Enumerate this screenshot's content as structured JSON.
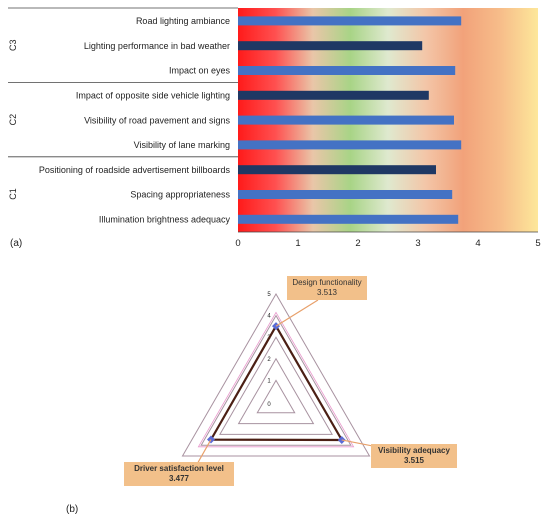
{
  "panel_a_label": "(a)",
  "panel_b_label": "(b)",
  "chart_data": [
    {
      "type": "bar",
      "orientation": "horizontal",
      "xlim": [
        0,
        5
      ],
      "x_ticks": [
        "0",
        "1",
        "2",
        "3",
        "4",
        "5"
      ],
      "groups": [
        {
          "name": "C3",
          "categories": [
            "Road lighting ambiance",
            "Lighting performance in bad weather",
            "Impact on eyes"
          ]
        },
        {
          "name": "C2",
          "categories": [
            "Impact of opposite side vehicle lighting",
            "Visibility of road pavement and signs",
            "Visibility of lane marking"
          ]
        },
        {
          "name": "C1",
          "categories": [
            "Positioning of roadside advertisement billboards",
            "Spacing appropriateness",
            "Illumination brightness adequacy"
          ]
        }
      ],
      "bars": [
        {
          "label": "Road lighting ambiance",
          "value": 3.72,
          "color": "#4472c4"
        },
        {
          "label": "Lighting performance in bad weather",
          "value": 3.07,
          "color": "#1f3864"
        },
        {
          "label": "Impact on eyes",
          "value": 3.62,
          "color": "#4472c4"
        },
        {
          "label": "Impact of opposite side vehicle lighting ",
          "value": 3.18,
          "color": "#1f3864"
        },
        {
          "label": "Visibility of road pavement and signs",
          "value": 3.6,
          "color": "#4472c4"
        },
        {
          "label": "Visibility of lane marking",
          "value": 3.72,
          "color": "#4472c4"
        },
        {
          "label": "Positioning of roadside advertisement billboards",
          "value": 3.3,
          "color": "#1f3864"
        },
        {
          "label": "Spacing appropriateness",
          "value": 3.57,
          "color": "#4472c4"
        },
        {
          "label": "Illumination brightness adequacy",
          "value": 3.67,
          "color": "#4472c4"
        }
      ],
      "background_gradient": [
        "#ff1a1a",
        "#ff5050",
        "#e9c6a8",
        "#a8d486",
        "#dfe9cf",
        "#f3c6a8",
        "#f2a27a",
        "#f7bd8a",
        "#fde79a"
      ]
    },
    {
      "type": "radar",
      "r_ticks": [
        "0",
        "1",
        "2",
        "3",
        "4",
        "5"
      ],
      "axes": [
        "Design functionality",
        "Visibility adequacy",
        "Driver satisfaction level"
      ],
      "values": [
        3.513,
        3.515,
        3.477
      ],
      "value_labels": [
        "3.513",
        "3.515",
        "3.477"
      ],
      "series_color": "#4b1f14",
      "marker_color": "#5b6bd6",
      "grid_color": "#a892a0",
      "outer_ring_color": "#d63fa0"
    }
  ]
}
